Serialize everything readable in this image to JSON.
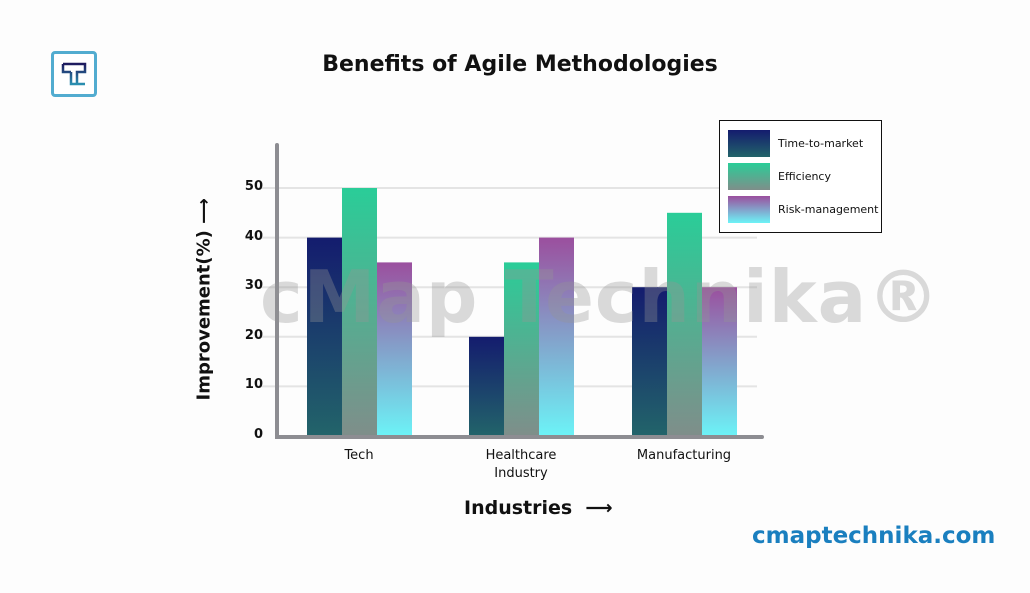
{
  "brand": {
    "site": "cmaptechnika.com",
    "watermark": "cMap Technika®",
    "logo_letter": "T"
  },
  "chart_data": {
    "type": "bar",
    "title": "Benefits of Agile Methodologies",
    "xlabel": "Industries",
    "ylabel": "Improvement(%)",
    "ylim": [
      0,
      50
    ],
    "yticks": [
      0,
      10,
      20,
      30,
      40,
      50
    ],
    "grid": true,
    "legend_position": "top-right",
    "categories": [
      "Tech",
      "Healthcare Industry",
      "Manufacturing"
    ],
    "category_lines": [
      [
        "Tech"
      ],
      [
        "Healthcare",
        "Industry"
      ],
      [
        "Manufacturing"
      ]
    ],
    "series": [
      {
        "name": "Time-to-market",
        "values": [
          40,
          20,
          30
        ],
        "colors": [
          "#141c6e",
          "#22646a"
        ]
      },
      {
        "name": "Efficiency",
        "values": [
          50,
          35,
          45
        ],
        "colors": [
          "#2acd98",
          "#7f8e8a"
        ]
      },
      {
        "name": "Risk-management",
        "values": [
          35,
          40,
          30
        ],
        "colors": [
          "#9b4f9e",
          "#6cf3f7"
        ]
      }
    ]
  }
}
